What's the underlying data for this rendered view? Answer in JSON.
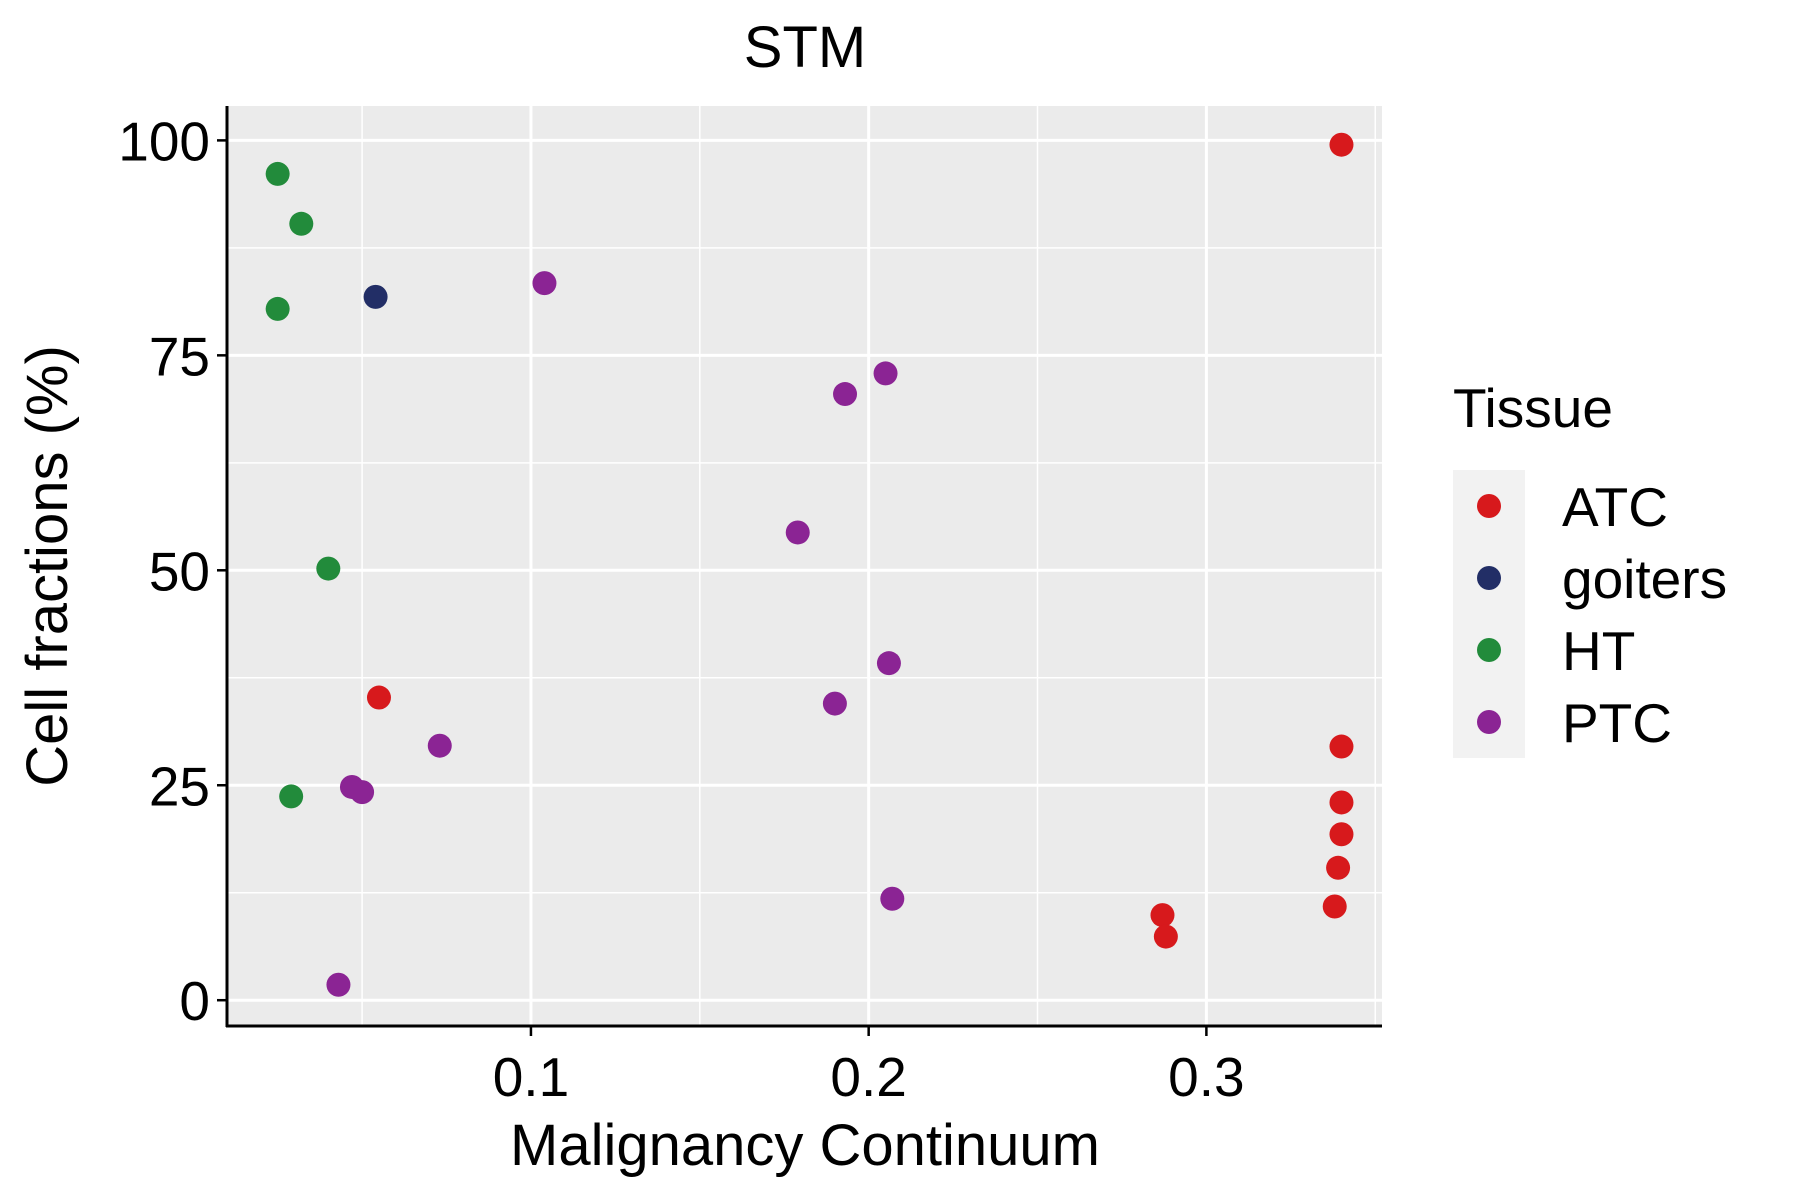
{
  "chart_data": {
    "type": "scatter",
    "title": "STM",
    "xlabel": "Malignancy Continuum",
    "ylabel": "Cell fractions (%)",
    "xlim": [
      0.01,
      0.352
    ],
    "ylim": [
      -3,
      104
    ],
    "x_ticks": [
      0.1,
      0.2,
      0.3
    ],
    "x_tick_labels": [
      "0.1",
      "0.2",
      "0.3"
    ],
    "y_ticks": [
      0,
      25,
      50,
      75,
      100
    ],
    "y_tick_labels": [
      "0",
      "25",
      "50",
      "75",
      "100"
    ],
    "grid": true,
    "legend": {
      "title": "Tissue",
      "position": "right"
    },
    "series": [
      {
        "name": "ATC",
        "color": "#d7191c",
        "points": [
          [
            0.34,
            99.5
          ],
          [
            0.055,
            35.2
          ],
          [
            0.34,
            29.5
          ],
          [
            0.34,
            23.0
          ],
          [
            0.34,
            19.3
          ],
          [
            0.339,
            15.4
          ],
          [
            0.338,
            10.9
          ],
          [
            0.287,
            9.9
          ],
          [
            0.288,
            7.4
          ]
        ]
      },
      {
        "name": "goiters",
        "color": "#222e66",
        "points": [
          [
            0.054,
            81.8
          ]
        ]
      },
      {
        "name": "HT",
        "color": "#228b3b",
        "points": [
          [
            0.025,
            96.1
          ],
          [
            0.032,
            90.3
          ],
          [
            0.025,
            80.4
          ],
          [
            0.04,
            50.2
          ],
          [
            0.029,
            23.7
          ]
        ]
      },
      {
        "name": "PTC",
        "color": "#8b2494",
        "points": [
          [
            0.104,
            83.4
          ],
          [
            0.205,
            72.9
          ],
          [
            0.193,
            70.5
          ],
          [
            0.179,
            54.4
          ],
          [
            0.206,
            39.2
          ],
          [
            0.19,
            34.5
          ],
          [
            0.073,
            29.6
          ],
          [
            0.047,
            24.8
          ],
          [
            0.05,
            24.2
          ],
          [
            0.207,
            11.8
          ],
          [
            0.043,
            1.8
          ]
        ]
      }
    ]
  }
}
